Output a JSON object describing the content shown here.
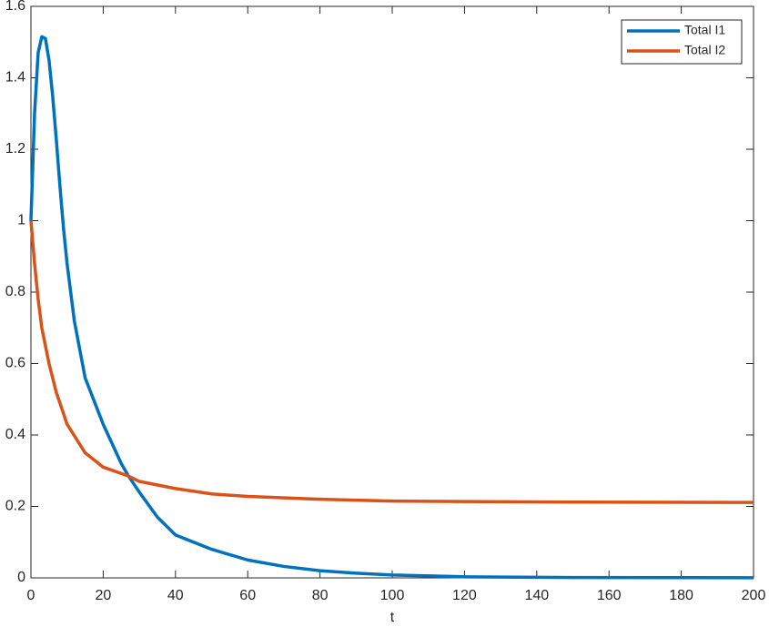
{
  "chart_data": {
    "type": "line",
    "xlabel": "t",
    "series": [
      {
        "name": "Total I1",
        "color": "#0072bd",
        "x": [
          0,
          1,
          2,
          3,
          4,
          5,
          6,
          7,
          8,
          9,
          10,
          12,
          15,
          20,
          25,
          27,
          30,
          35,
          40,
          50,
          60,
          70,
          80,
          90,
          100,
          120,
          150,
          200
        ],
        "values": [
          1.0,
          1.3,
          1.47,
          1.515,
          1.51,
          1.45,
          1.35,
          1.23,
          1.1,
          0.98,
          0.88,
          0.72,
          0.56,
          0.43,
          0.32,
          0.285,
          0.24,
          0.17,
          0.12,
          0.08,
          0.05,
          0.032,
          0.02,
          0.013,
          0.008,
          0.003,
          0.001,
          0.0003
        ]
      },
      {
        "name": "Total I2",
        "color": "#d95319",
        "x": [
          0,
          1,
          2,
          3,
          5,
          7,
          10,
          15,
          20,
          27,
          30,
          40,
          50,
          60,
          80,
          100,
          150,
          200
        ],
        "values": [
          1.0,
          0.88,
          0.78,
          0.7,
          0.6,
          0.52,
          0.43,
          0.35,
          0.31,
          0.285,
          0.27,
          0.25,
          0.235,
          0.228,
          0.22,
          0.215,
          0.212,
          0.211
        ]
      }
    ],
    "xlim": [
      0,
      200
    ],
    "xticks": [
      0,
      20,
      40,
      60,
      80,
      100,
      120,
      140,
      160,
      180,
      200
    ],
    "ylim": [
      0,
      1.6
    ],
    "yticks": [
      0,
      0.2,
      0.4,
      0.6,
      0.8,
      1,
      1.2,
      1.4,
      1.6
    ],
    "legend": "top-right",
    "grid": false
  }
}
